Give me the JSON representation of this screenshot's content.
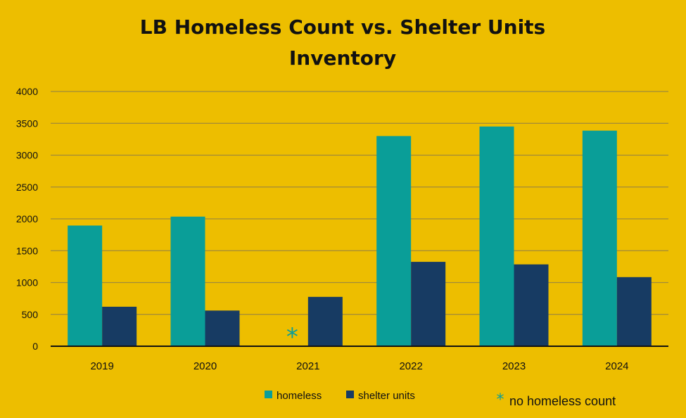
{
  "chart_data": {
    "type": "bar",
    "title_lines": [
      "LB Homeless Count vs. Shelter Units",
      "Inventory"
    ],
    "categories": [
      "2019",
      "2020",
      "2021",
      "2022",
      "2023",
      "2024"
    ],
    "series": [
      {
        "name": "homeless",
        "color": "#0A9E98",
        "values": [
          1895,
          2035,
          null,
          3300,
          3450,
          3385
        ]
      },
      {
        "name": "shelter units",
        "color": "#173B63",
        "values": [
          620,
          560,
          775,
          1325,
          1285,
          1085
        ]
      }
    ],
    "ylim": [
      0,
      4000
    ],
    "yticks": [
      "0",
      "500",
      "1000",
      "1500",
      "2000",
      "2500",
      "3000",
      "3500",
      "4000"
    ],
    "grid": true,
    "legend": "bottom",
    "missing_marker": {
      "category": "2021",
      "symbol": "*",
      "color": "#0A9E98"
    },
    "annotation": {
      "symbol": "*",
      "text": "no homeless count",
      "color": "#0A9E98"
    }
  }
}
